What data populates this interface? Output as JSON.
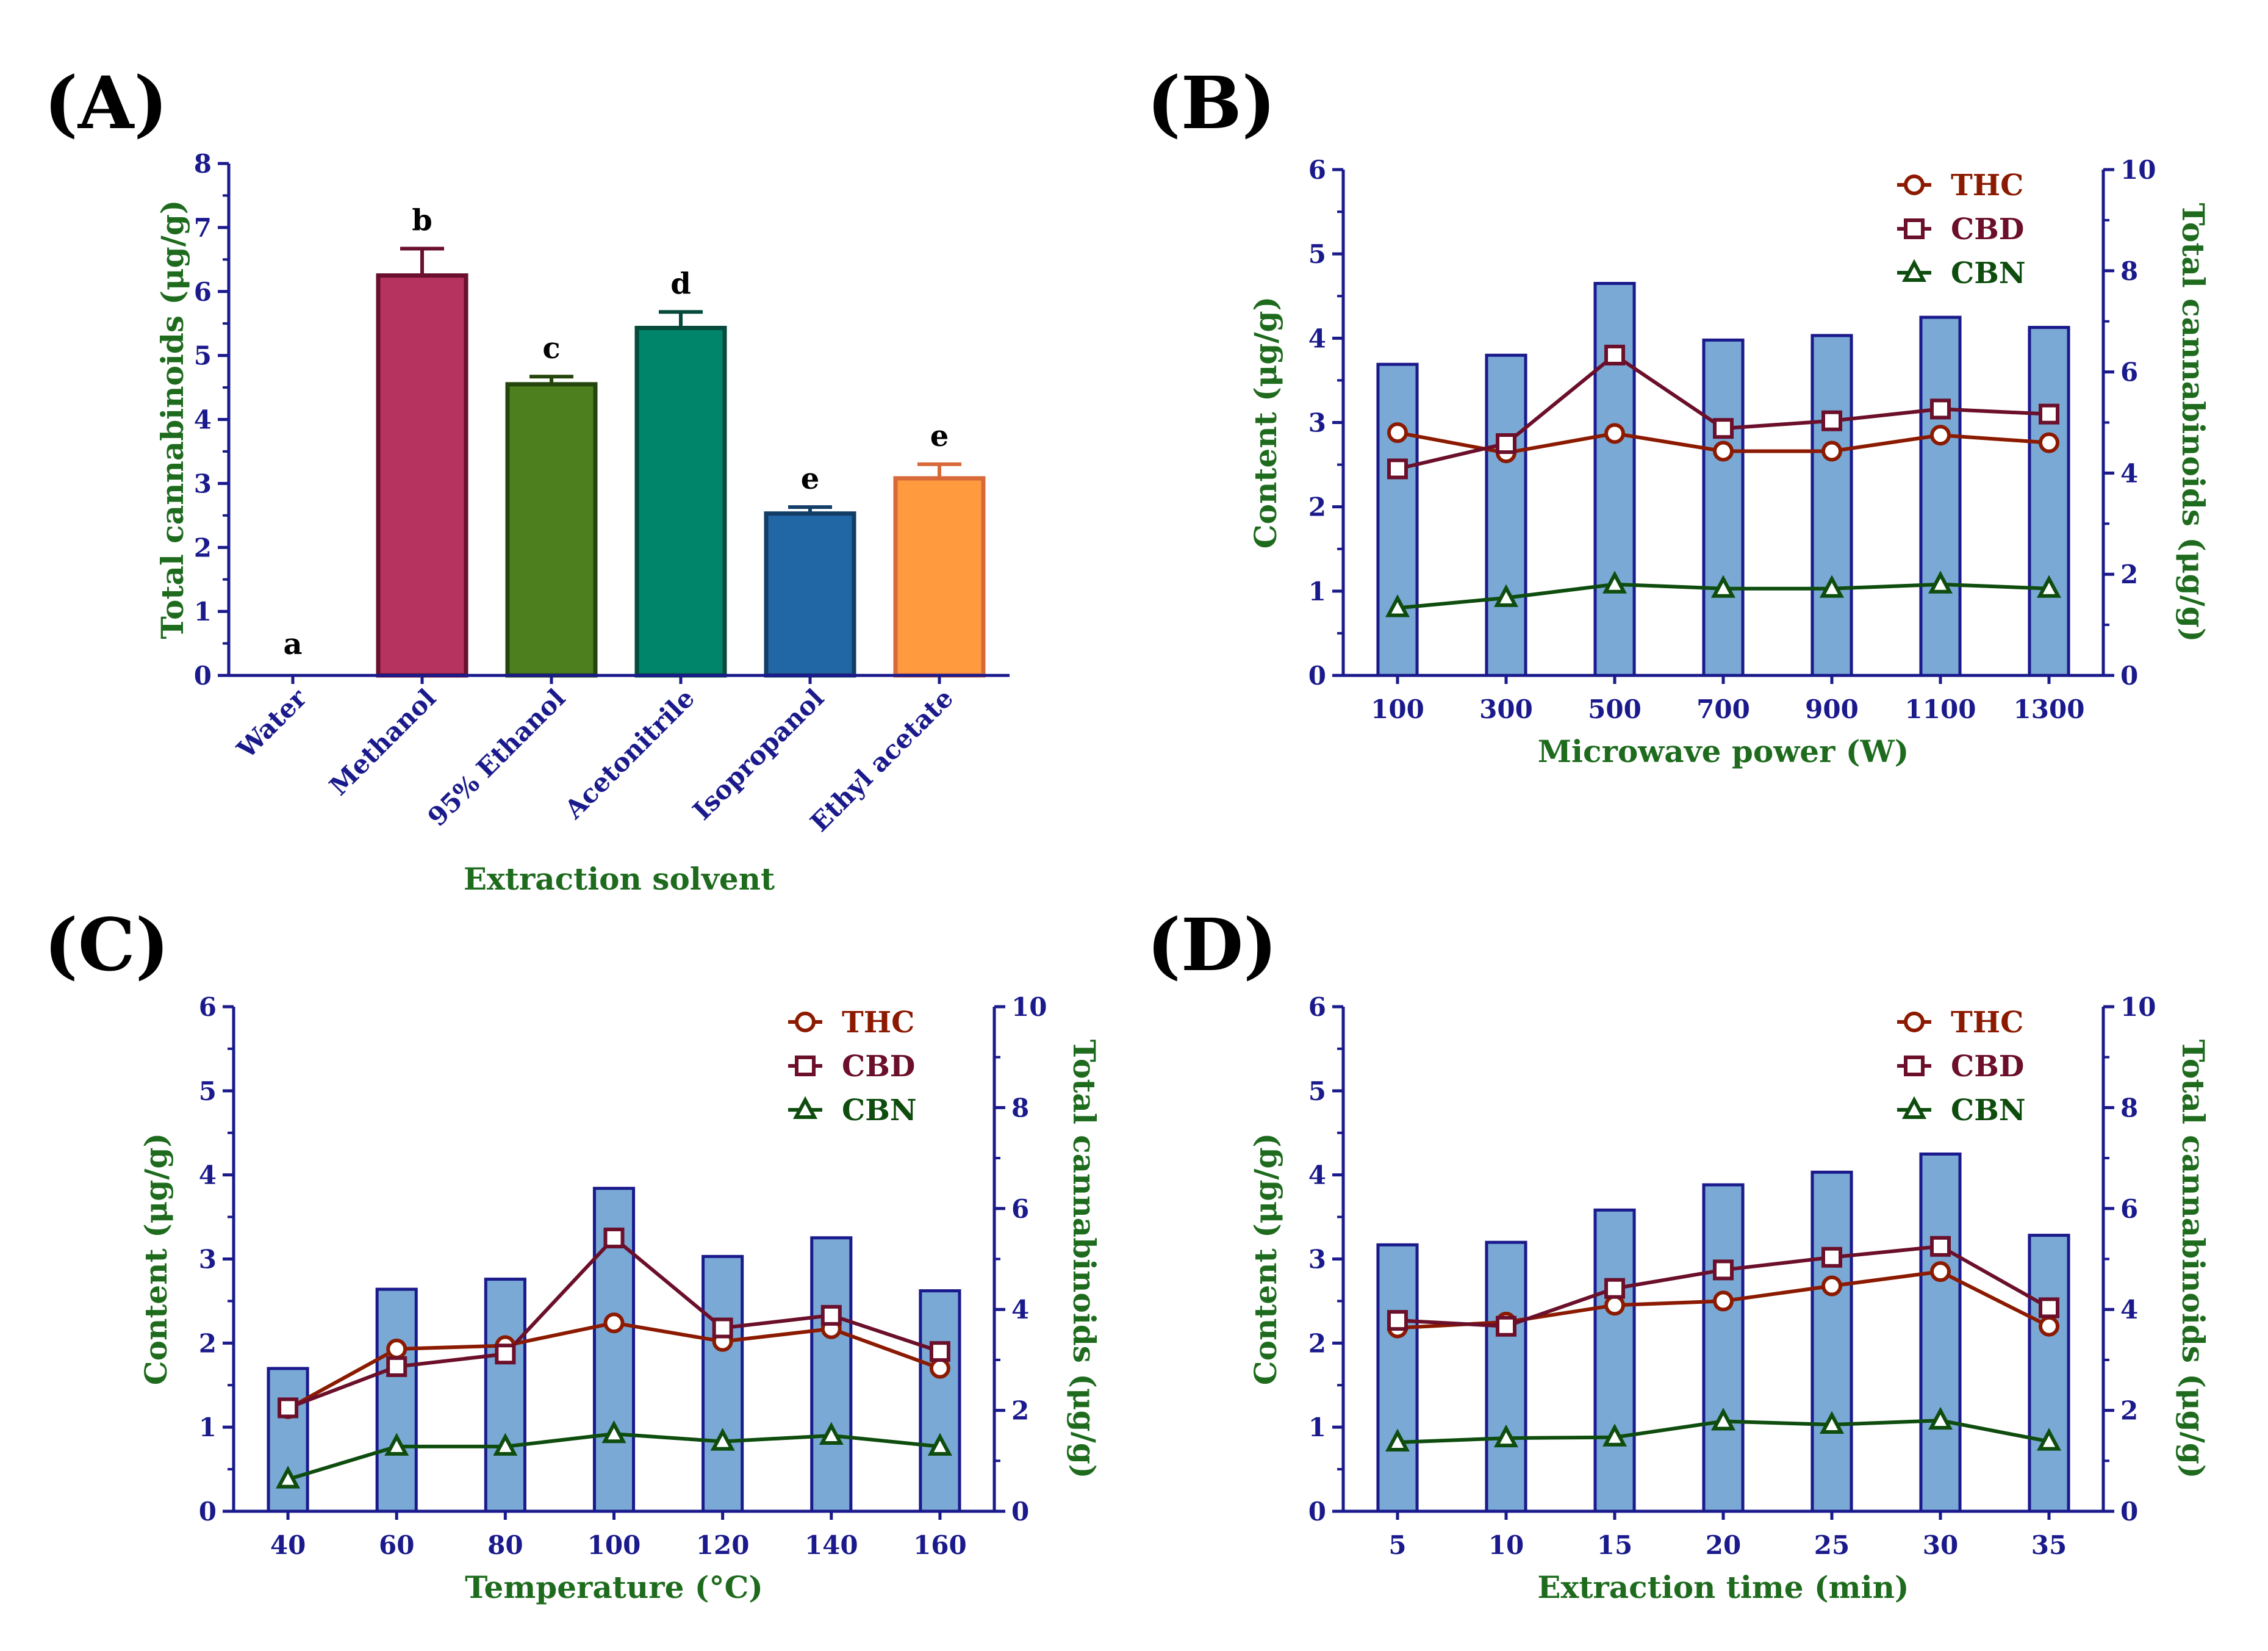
{
  "colors": {
    "axis": "#1a1a8c",
    "axis_label": "#1e6b1e",
    "bar_fill": "#7aa9d6",
    "bar_edge": "#1a1a8c",
    "thc": "#8b1a00",
    "cbd": "#6b0f2a",
    "cbn": "#0f4d0f"
  },
  "chart_data": [
    {
      "id": "A",
      "panel_label": "(A)",
      "type": "bar",
      "title": "",
      "xlabel": "Extraction solvent",
      "ylabel": "Total cannabinoids (μg/g)",
      "ylim": [
        0,
        8
      ],
      "yticks": [
        0,
        1,
        2,
        3,
        4,
        5,
        6,
        7,
        8
      ],
      "categories": [
        "Water",
        "Methanol",
        "95% Ethanol",
        "Acetonitrile",
        "Isopropanol",
        "Ethyl acetate"
      ],
      "values": [
        0,
        6.25,
        4.55,
        5.43,
        2.53,
        3.08
      ],
      "errors": [
        0,
        0.42,
        0.12,
        0.25,
        0.1,
        0.22
      ],
      "significance": [
        "a",
        "b",
        "c",
        "d",
        "e",
        "e"
      ],
      "bar_colors": [
        "#ffffff",
        "#b5335e",
        "#4d7f1f",
        "#00846a",
        "#2267a5",
        "#ff9a3e"
      ],
      "edge_colors": [
        "#ffffff",
        "#6a0f2e",
        "#24450c",
        "#064a3b",
        "#123d66",
        "#d86a3a"
      ]
    },
    {
      "id": "B",
      "panel_label": "(B)",
      "type": "bar+line",
      "xlabel": "Microwave power (W)",
      "ylabel_left": "Content (μg/g)",
      "ylabel_right": "Total cannabinoids (μg/g)",
      "ylim_left": [
        0,
        6
      ],
      "ylim_right": [
        0,
        10
      ],
      "yticks_left": [
        0,
        1,
        2,
        3,
        4,
        5,
        6
      ],
      "yticks_right": [
        0,
        2,
        4,
        6,
        8,
        10
      ],
      "categories": [
        "100",
        "300",
        "500",
        "700",
        "900",
        "1100",
        "1300"
      ],
      "bars": [
        6.15,
        6.33,
        7.75,
        6.63,
        6.72,
        7.08,
        6.88
      ],
      "series": [
        {
          "name": "THC",
          "marker": "circle",
          "values": [
            2.88,
            2.64,
            2.87,
            2.66,
            2.66,
            2.85,
            2.76
          ]
        },
        {
          "name": "CBD",
          "marker": "square",
          "values": [
            2.45,
            2.75,
            3.8,
            2.93,
            3.02,
            3.16,
            3.1
          ]
        },
        {
          "name": "CBN",
          "marker": "triangle",
          "values": [
            0.8,
            0.92,
            1.08,
            1.03,
            1.03,
            1.08,
            1.03
          ]
        }
      ]
    },
    {
      "id": "C",
      "panel_label": "(C)",
      "type": "bar+line",
      "xlabel": "Temperature (°C)",
      "ylabel_left": "Content (μg/g)",
      "ylabel_right": "Total cannabinoids (μg/g)",
      "ylim_left": [
        0,
        6
      ],
      "ylim_right": [
        0,
        10
      ],
      "yticks_left": [
        0,
        1,
        2,
        3,
        4,
        5,
        6
      ],
      "yticks_right": [
        0,
        2,
        4,
        6,
        8,
        10
      ],
      "categories": [
        "40",
        "60",
        "80",
        "100",
        "120",
        "140",
        "160"
      ],
      "bars": [
        2.83,
        4.4,
        4.6,
        6.4,
        5.05,
        5.42,
        4.37
      ],
      "series": [
        {
          "name": "THC",
          "marker": "circle",
          "values": [
            1.22,
            1.93,
            1.97,
            2.24,
            2.02,
            2.17,
            1.7
          ]
        },
        {
          "name": "CBD",
          "marker": "square",
          "values": [
            1.23,
            1.72,
            1.87,
            3.25,
            2.18,
            2.33,
            1.9
          ]
        },
        {
          "name": "CBN",
          "marker": "triangle",
          "values": [
            0.38,
            0.77,
            0.77,
            0.92,
            0.83,
            0.9,
            0.77
          ]
        }
      ]
    },
    {
      "id": "D",
      "panel_label": "(D)",
      "type": "bar+line",
      "xlabel": "Extraction time (min)",
      "ylabel_left": "Content (μg/g)",
      "ylabel_right": "Total cannabinoids (μg/g)",
      "ylim_left": [
        0,
        6
      ],
      "ylim_right": [
        0,
        10
      ],
      "yticks_left": [
        0,
        1,
        2,
        3,
        4,
        5,
        6
      ],
      "yticks_right": [
        0,
        2,
        4,
        6,
        8,
        10
      ],
      "categories": [
        "5",
        "10",
        "15",
        "20",
        "25",
        "30",
        "35"
      ],
      "bars": [
        5.28,
        5.33,
        5.97,
        6.47,
        6.72,
        7.08,
        5.47
      ],
      "series": [
        {
          "name": "THC",
          "marker": "circle",
          "values": [
            2.18,
            2.25,
            2.45,
            2.5,
            2.68,
            2.85,
            2.2
          ]
        },
        {
          "name": "CBD",
          "marker": "square",
          "values": [
            2.27,
            2.2,
            2.65,
            2.87,
            3.02,
            3.15,
            2.42
          ]
        },
        {
          "name": "CBN",
          "marker": "triangle",
          "values": [
            0.82,
            0.87,
            0.88,
            1.07,
            1.03,
            1.08,
            0.83
          ]
        }
      ]
    }
  ]
}
